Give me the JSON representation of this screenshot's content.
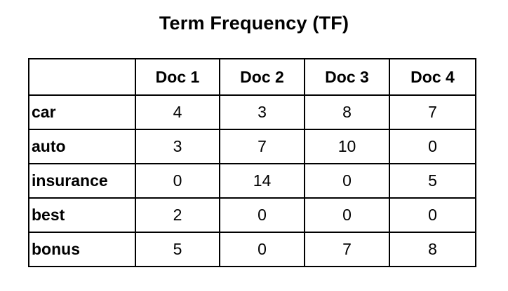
{
  "chart_data": {
    "type": "table",
    "title": "Term Frequency (TF)",
    "corner": "",
    "columns": [
      "Doc 1",
      "Doc 2",
      "Doc 3",
      "Doc 4"
    ],
    "rows": [
      {
        "term": "car",
        "values": [
          4,
          3,
          8,
          7
        ]
      },
      {
        "term": "auto",
        "values": [
          3,
          7,
          10,
          0
        ]
      },
      {
        "term": "insurance",
        "values": [
          0,
          14,
          0,
          5
        ]
      },
      {
        "term": "best",
        "values": [
          2,
          0,
          0,
          0
        ]
      },
      {
        "term": "bonus",
        "values": [
          5,
          0,
          7,
          8
        ]
      }
    ]
  }
}
